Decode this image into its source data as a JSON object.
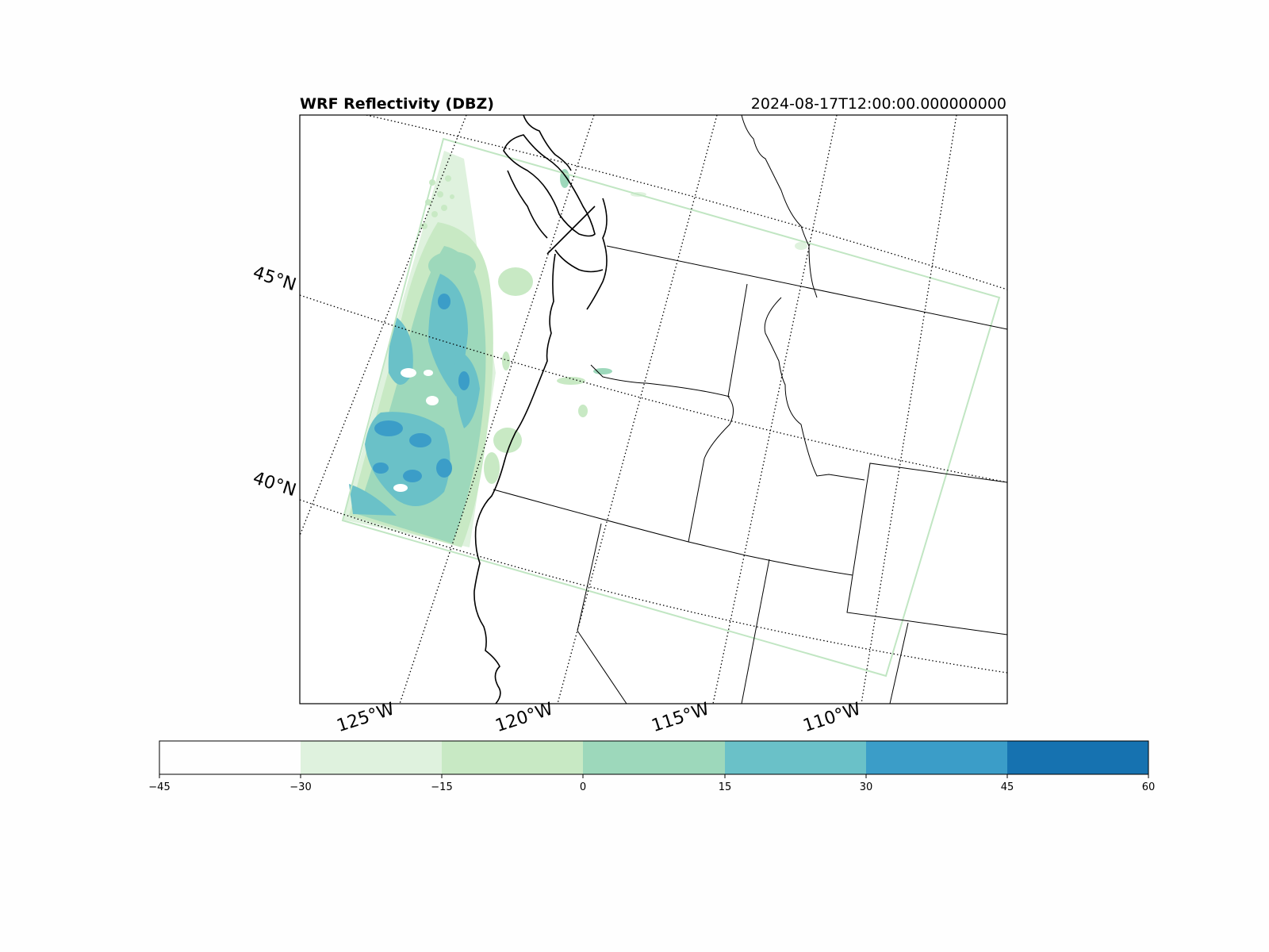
{
  "title": "WRF Reflectivity (DBZ)",
  "timestamp": "2024-08-17T12:00:00.000000000",
  "lat_labels": [
    "45°N",
    "40°N"
  ],
  "lon_labels": [
    "125°W",
    "120°W",
    "115°W",
    "110°W"
  ],
  "colorbar": {
    "ticks": [
      "−45",
      "−30",
      "−15",
      "0",
      "15",
      "30",
      "45",
      "60"
    ],
    "colors": [
      "#fefefe",
      "#dff2de",
      "#c8e9c4",
      "#9dd8bb",
      "#6ac1c8",
      "#3b9dc8",
      "#1672b0"
    ]
  },
  "colors": {
    "domain_outline": "#c1e6c3",
    "frame": "#000000"
  }
}
